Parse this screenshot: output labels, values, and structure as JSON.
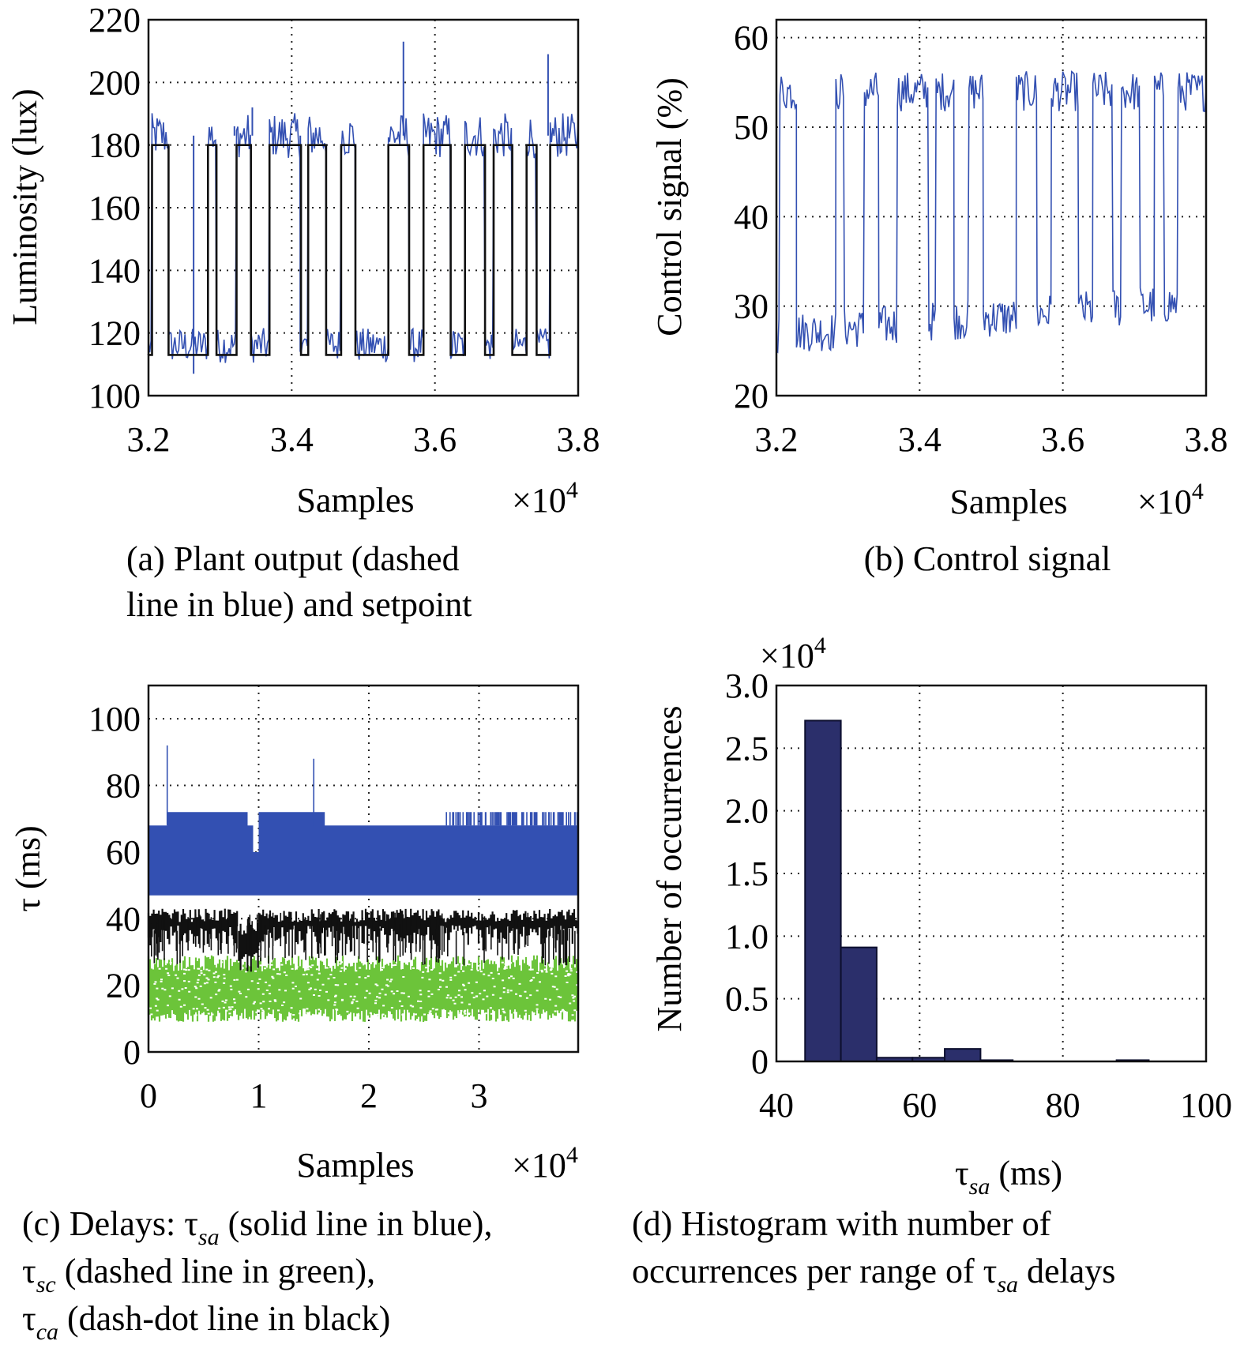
{
  "colors": {
    "blue": "#3350b2",
    "black": "#111111",
    "green": "#6cc43a",
    "navy": "#2b2f6b"
  },
  "chart_data": [
    {
      "panel": "a",
      "type": "line",
      "caption": "(a) Plant output (dashed line in blue) and setpoint",
      "caption_lines": [
        "(a) Plant output (dashed",
        "line in blue) and setpoint"
      ],
      "xlabel": "Samples",
      "x_multiplier": "×10",
      "x_multiplier_exp": "4",
      "ylabel": "Luminosity (lux)",
      "xlim": [
        3.2,
        3.8
      ],
      "ylim": [
        100,
        220
      ],
      "xticks": [
        "3.2",
        "3.4",
        "3.6",
        "3.8"
      ],
      "yticks": [
        "100",
        "120",
        "140",
        "160",
        "180",
        "200",
        "220"
      ],
      "grid": true,
      "setpoint_levels": [
        113,
        180
      ],
      "setpoint_switches": [
        3.2,
        3.205,
        3.228,
        3.283,
        3.295,
        3.323,
        3.343,
        3.369,
        3.413,
        3.423,
        3.448,
        3.469,
        3.489,
        3.535,
        3.564,
        3.584,
        3.622,
        3.642,
        3.67,
        3.682,
        3.708,
        3.728,
        3.742,
        3.761,
        3.8
      ],
      "series": [
        {
          "name": "",
          "style": "dashed",
          "color": "#3350b2",
          "role": "plant output",
          "levels": [
            116,
            183
          ]
        },
        {
          "name": "",
          "style": "solid",
          "color": "#111111",
          "role": "setpoint"
        }
      ]
    },
    {
      "panel": "b",
      "type": "line",
      "caption": "(b) Control signal",
      "xlabel": "Samples",
      "x_multiplier": "×10",
      "x_multiplier_exp": "4",
      "ylabel": "Control signal (%)",
      "xlim": [
        3.2,
        3.8
      ],
      "ylim": [
        20,
        62
      ],
      "xticks": [
        "3.2",
        "3.4",
        "3.6",
        "3.8"
      ],
      "yticks": [
        "20",
        "30",
        "40",
        "50",
        "60"
      ],
      "grid": true,
      "series": [
        {
          "name": "",
          "style": "solid",
          "color": "#3350b2",
          "levels": [
            27,
            54
          ]
        }
      ]
    },
    {
      "panel": "c",
      "type": "line",
      "caption_parts": [
        {
          "prefix": "(c) Delays: τ",
          "sub": "sa",
          "suffix": " (solid line in blue),"
        },
        {
          "prefix": "τ",
          "sub": "sc",
          "suffix": " (dashed line in green),"
        },
        {
          "prefix": "τ",
          "sub": "ca",
          "suffix": " (dash-dot line in black)"
        }
      ],
      "xlabel": "Samples",
      "x_multiplier": "×10",
      "x_multiplier_exp": "4",
      "ylabel": "τ (ms)",
      "xlim": [
        0,
        3.9
      ],
      "ylim": [
        0,
        110
      ],
      "xticks": [
        "0",
        "1",
        "2",
        "3"
      ],
      "yticks": [
        "0",
        "20",
        "40",
        "60",
        "80",
        "100"
      ],
      "grid": true,
      "series": [
        {
          "name": "",
          "symbol": "τsa",
          "style": "solid",
          "color": "#3350b2",
          "range": [
            47,
            68
          ],
          "spikes": [
            72,
            92,
            88
          ]
        },
        {
          "name": "",
          "symbol": "τca",
          "style": "dash-dot",
          "color": "#111111",
          "range": [
            26,
            45
          ]
        },
        {
          "name": "",
          "symbol": "τsc",
          "style": "dashed",
          "color": "#6cc43a",
          "range": [
            9,
            29
          ]
        }
      ]
    },
    {
      "panel": "d",
      "type": "bar",
      "caption_parts": [
        {
          "prefix": "(d) Histogram with number of",
          "sub": "",
          "suffix": ""
        },
        {
          "prefix": "occurrences per range of τ",
          "sub": "sa",
          "suffix": " delays"
        }
      ],
      "xlabel_prefix": "τ",
      "xlabel_sub": "sa",
      "xlabel_suffix": " (ms)",
      "ylabel": "Number of occurrences",
      "y_multiplier": "×10",
      "y_multiplier_exp": "4",
      "xlim": [
        40,
        100
      ],
      "ylim": [
        0,
        3.0
      ],
      "xticks": [
        "40",
        "60",
        "80",
        "100"
      ],
      "yticks": [
        "0",
        "0.5",
        "1.0",
        "1.5",
        "2.0",
        "2.5",
        "3.0"
      ],
      "grid": true,
      "bins": [
        {
          "x0": 44.0,
          "x1": 49.0,
          "value": 2.72
        },
        {
          "x0": 49.0,
          "x1": 54.0,
          "value": 0.91
        },
        {
          "x0": 54.0,
          "x1": 59.0,
          "value": 0.03
        },
        {
          "x0": 59.0,
          "x1": 63.5,
          "value": 0.03
        },
        {
          "x0": 63.5,
          "x1": 68.5,
          "value": 0.1
        },
        {
          "x0": 68.5,
          "x1": 73.0,
          "value": 0.01
        },
        {
          "x0": 73.0,
          "x1": 87.5,
          "value": 0.0
        },
        {
          "x0": 87.5,
          "x1": 92.0,
          "value": 0.01
        }
      ]
    }
  ]
}
